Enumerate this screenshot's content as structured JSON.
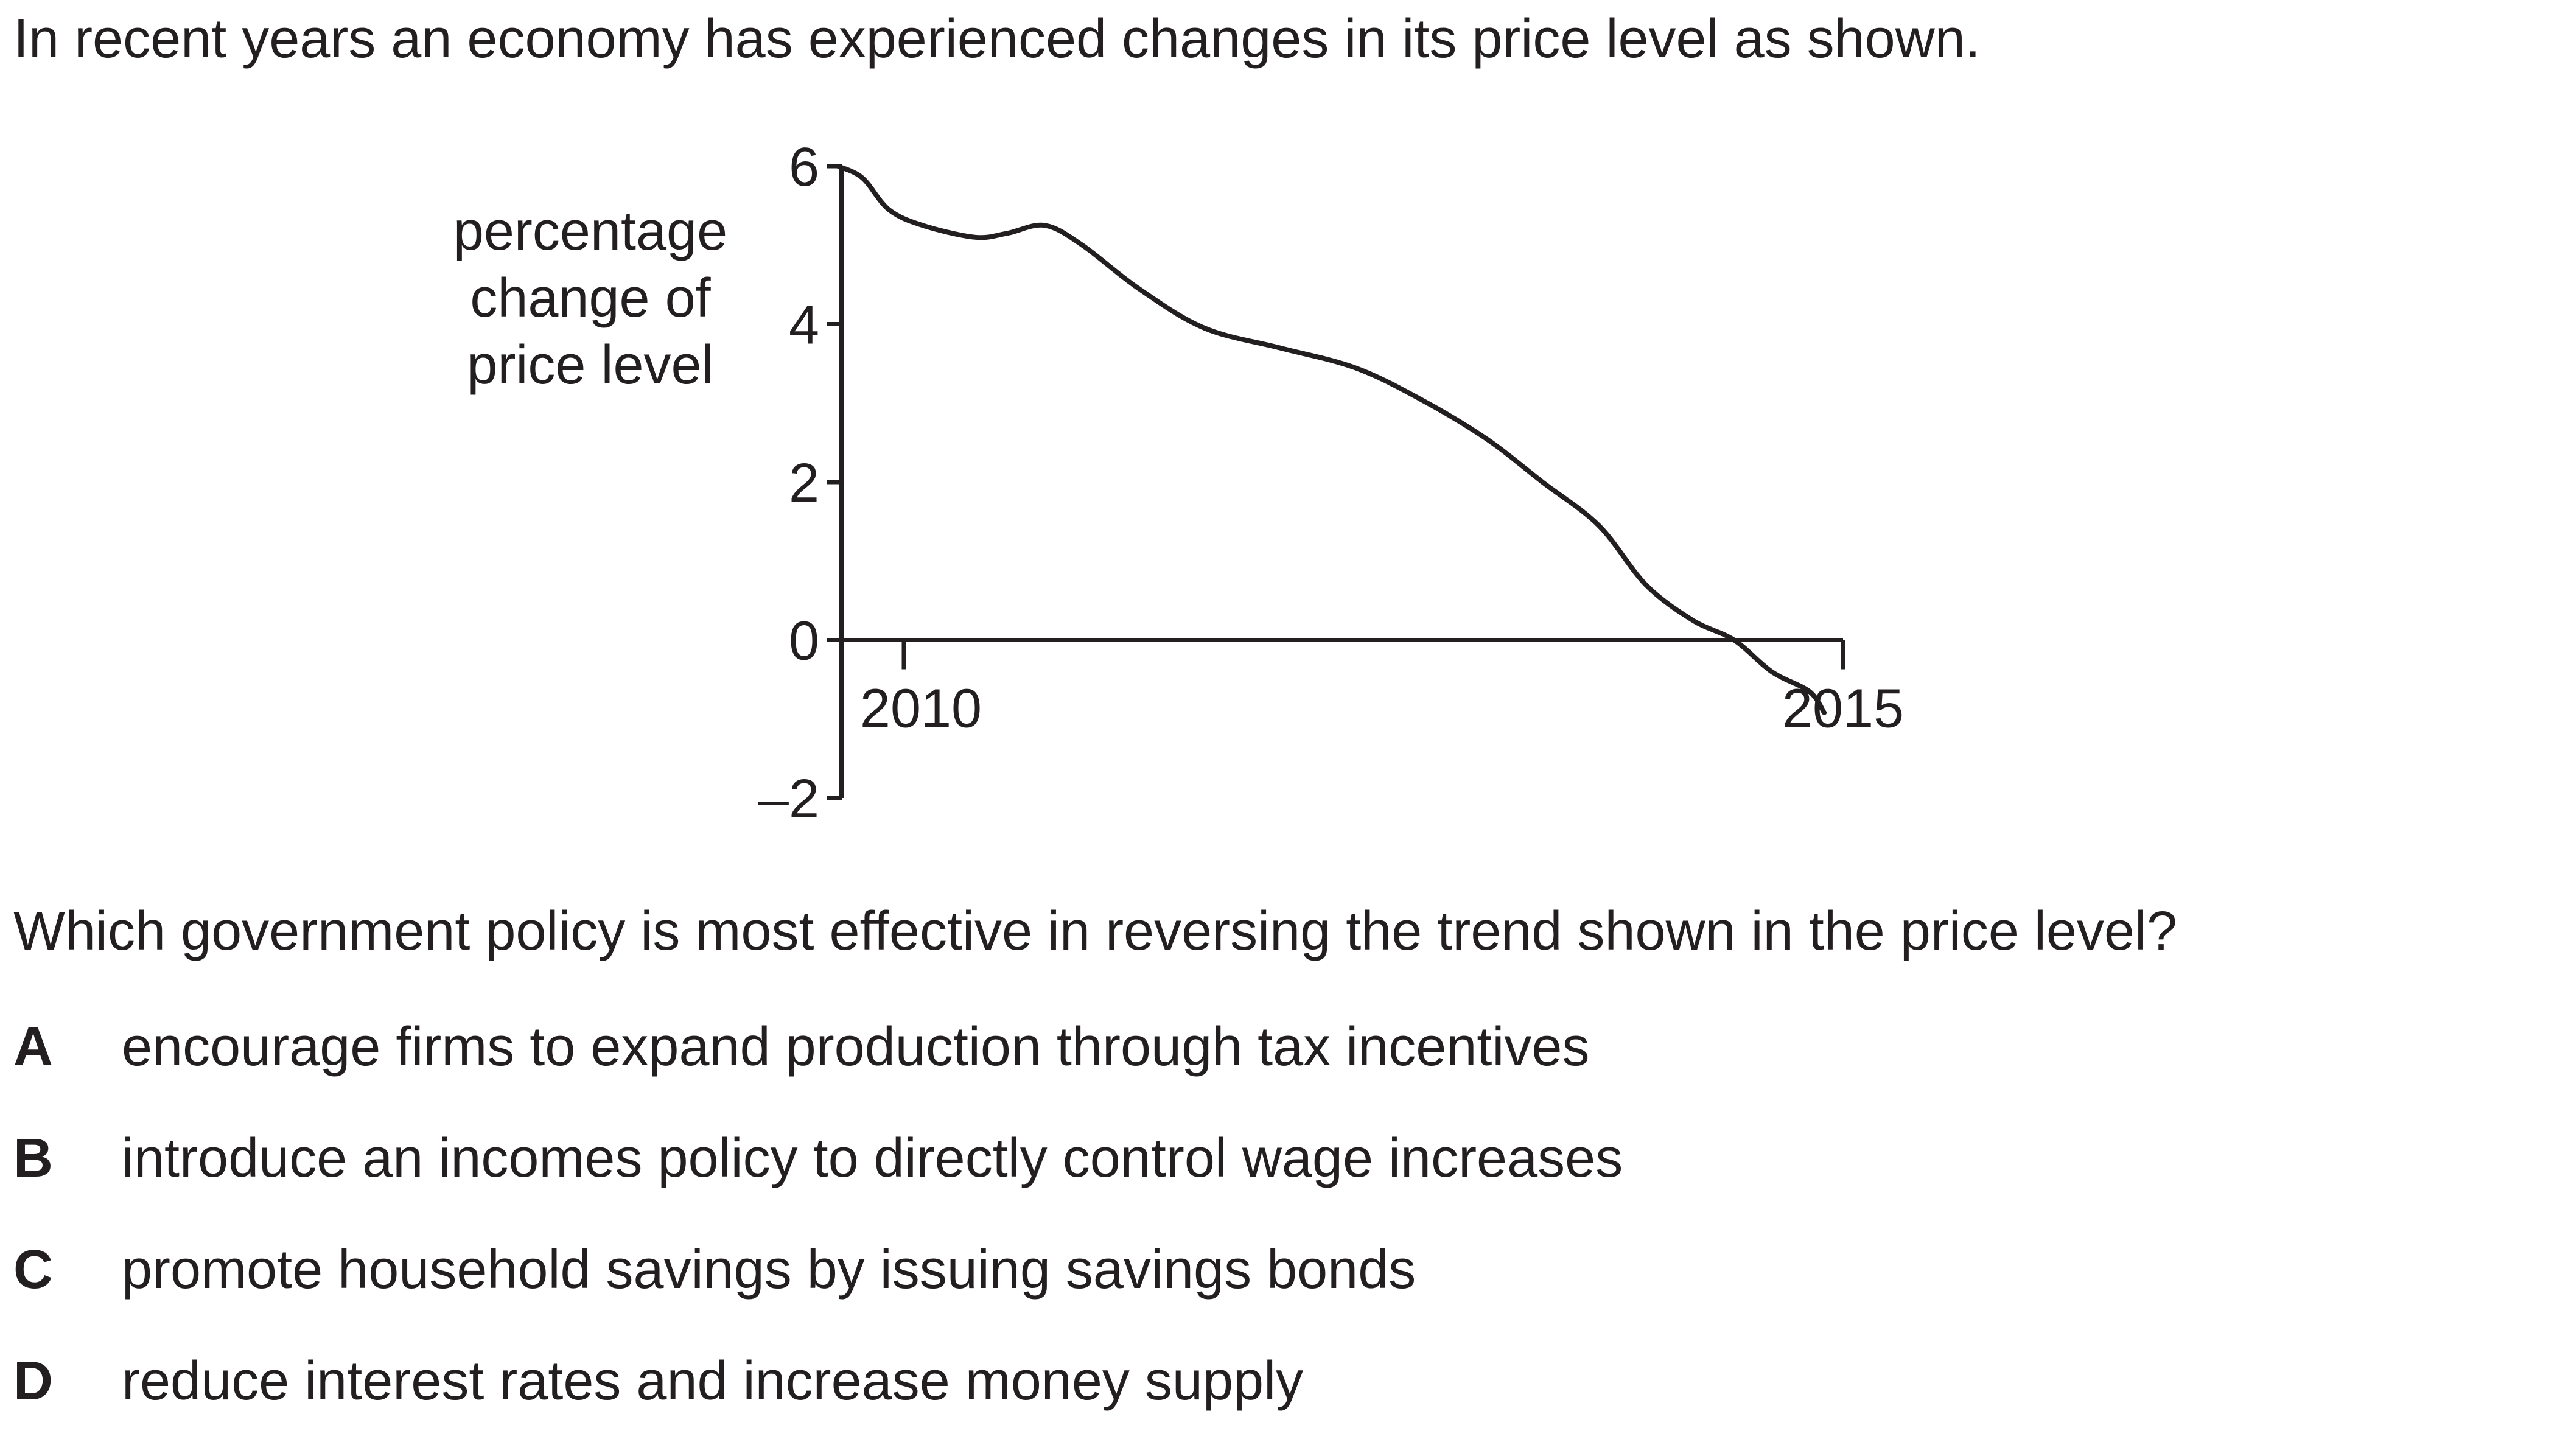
{
  "intro": "In recent years an economy has experienced changes in its price level as shown.",
  "chart_data": {
    "type": "line",
    "ylabel_lines": [
      "percentage",
      "change of",
      "price level"
    ],
    "ylim": [
      -2,
      6
    ],
    "yticks": [
      {
        "value": 6,
        "label": "6"
      },
      {
        "value": 4,
        "label": "4"
      },
      {
        "value": 2,
        "label": "2"
      },
      {
        "value": 0,
        "label": "0"
      },
      {
        "value": -2,
        "label": "–2"
      }
    ],
    "xlim": [
      2009.65,
      2015
    ],
    "xticks": [
      {
        "value": 2010,
        "label": "2010"
      },
      {
        "value": 2015,
        "label": "2015"
      }
    ],
    "grid": false,
    "series": [
      {
        "points": [
          [
            2009.65,
            6.0
          ],
          [
            2009.78,
            5.85
          ],
          [
            2009.92,
            5.45
          ],
          [
            2010.1,
            5.25
          ],
          [
            2010.38,
            5.1
          ],
          [
            2010.55,
            5.15
          ],
          [
            2010.75,
            5.25
          ],
          [
            2010.95,
            5.0
          ],
          [
            2011.25,
            4.45
          ],
          [
            2011.6,
            3.95
          ],
          [
            2012.0,
            3.7
          ],
          [
            2012.4,
            3.45
          ],
          [
            2012.75,
            3.05
          ],
          [
            2013.1,
            2.55
          ],
          [
            2013.4,
            2.0
          ],
          [
            2013.7,
            1.45
          ],
          [
            2013.95,
            0.7
          ],
          [
            2014.2,
            0.25
          ],
          [
            2014.42,
            0.0
          ],
          [
            2014.62,
            -0.4
          ],
          [
            2014.82,
            -0.65
          ],
          [
            2014.9,
            -0.92
          ]
        ]
      }
    ]
  },
  "question": "Which government policy is most effective in reversing the trend shown in the price level?",
  "options": [
    {
      "letter": "A",
      "text": "encourage firms to expand production through tax incentives"
    },
    {
      "letter": "B",
      "text": "introduce an incomes policy to directly control wage increases"
    },
    {
      "letter": "C",
      "text": "promote household savings by issuing savings bonds"
    },
    {
      "letter": "D",
      "text": "reduce interest rates and increase money supply"
    }
  ]
}
